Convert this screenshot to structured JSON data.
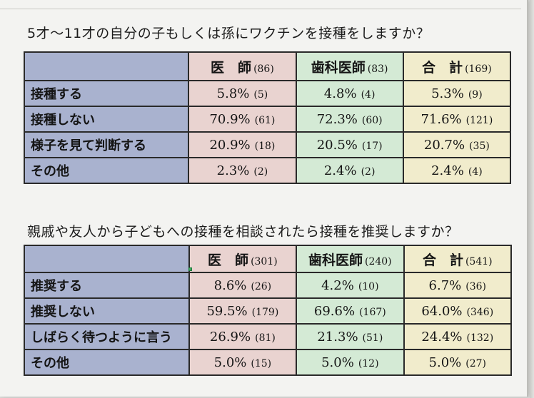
{
  "survey1": {
    "question": "5才～11才の自分の子もしくは孫にワクチンを接種をしますか？",
    "headers": [
      {
        "label": "医　師",
        "n": "(86)"
      },
      {
        "label": "歯科医師",
        "n": "(83)"
      },
      {
        "label": "合　計",
        "n": "(169)"
      }
    ],
    "rows": [
      {
        "label": "接種する",
        "cells": [
          {
            "pct": "5.8%",
            "n": "(5)"
          },
          {
            "pct": "4.8%",
            "n": "(4)"
          },
          {
            "pct": "5.3%",
            "n": "(9)"
          }
        ]
      },
      {
        "label": "接種しない",
        "cells": [
          {
            "pct": "70.9%",
            "n": "(61)"
          },
          {
            "pct": "72.3%",
            "n": "(60)"
          },
          {
            "pct": "71.6%",
            "n": "(121)"
          }
        ]
      },
      {
        "label": "様子を見て判断する",
        "cells": [
          {
            "pct": "20.9%",
            "n": "(18)"
          },
          {
            "pct": "20.5%",
            "n": "(17)"
          },
          {
            "pct": "20.7%",
            "n": "(35)"
          }
        ]
      },
      {
        "label": "その他",
        "cells": [
          {
            "pct": "2.3%",
            "n": "(2)"
          },
          {
            "pct": "2.4%",
            "n": "(2)"
          },
          {
            "pct": "2.4%",
            "n": "(4)"
          }
        ]
      }
    ]
  },
  "survey2": {
    "question": "親戚や友人から子どもへの接種を相談されたら接種を推奨しますか？",
    "headers": [
      {
        "label": "医　師",
        "n": "(301)"
      },
      {
        "label": "歯科医師",
        "n": "(240)"
      },
      {
        "label": "合　計",
        "n": "(541)"
      }
    ],
    "rows": [
      {
        "label": "推奨する",
        "cells": [
          {
            "pct": "8.6%",
            "n": "(26)"
          },
          {
            "pct": "4.2%",
            "n": "(10)"
          },
          {
            "pct": "6.7%",
            "n": "(36)"
          }
        ]
      },
      {
        "label": "推奨しない",
        "cells": [
          {
            "pct": "59.5%",
            "n": "(179)"
          },
          {
            "pct": "69.6%",
            "n": "(167)"
          },
          {
            "pct": "64.0%",
            "n": "(346)"
          }
        ]
      },
      {
        "label": "しばらく待つように言う",
        "cells": [
          {
            "pct": "26.9%",
            "n": "(81)"
          },
          {
            "pct": "21.3%",
            "n": "(51)"
          },
          {
            "pct": "24.4%",
            "n": "(132)"
          }
        ]
      },
      {
        "label": "その他",
        "cells": [
          {
            "pct": "5.0%",
            "n": "(15)"
          },
          {
            "pct": "5.0%",
            "n": "(12)"
          },
          {
            "pct": "5.0%",
            "n": "(27)"
          }
        ]
      }
    ]
  },
  "colors": {
    "row_label_bg": "#a9b2cf",
    "doctor_col_bg": "#e9d3d0",
    "dentist_col_bg": "#d4ead5",
    "total_col_bg": "#f1eccc",
    "selection_marker": "#3da75c"
  }
}
